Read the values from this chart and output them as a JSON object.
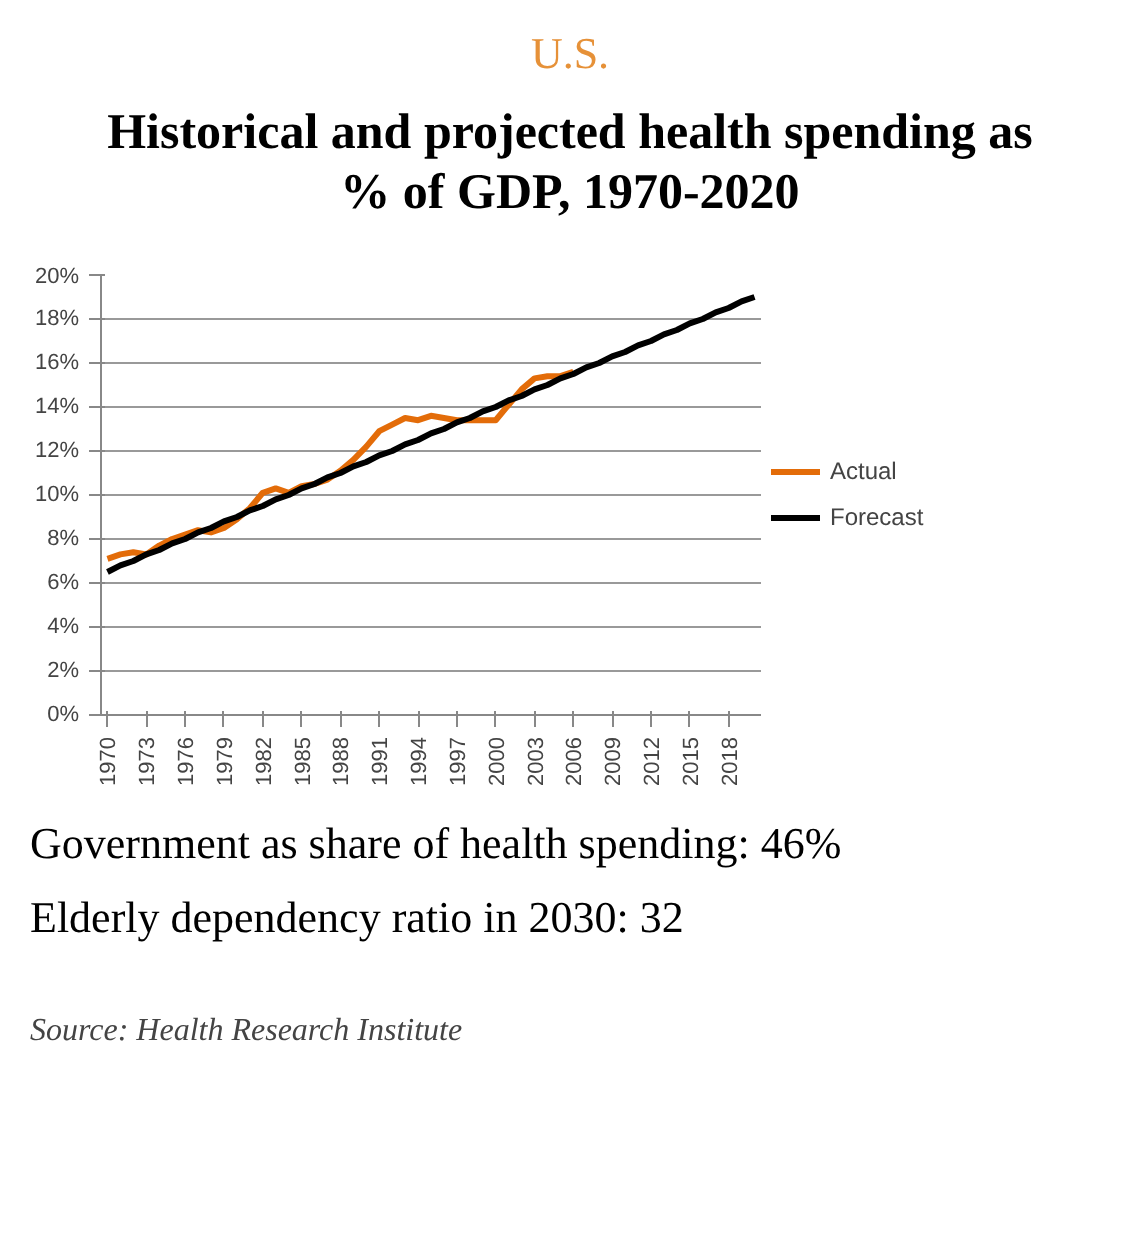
{
  "chart_data": {
    "type": "line",
    "subtitle": "U.S.",
    "title": "Historical and projected health spending as % of GDP, 1970-2020",
    "x": [
      1970,
      1971,
      1972,
      1973,
      1974,
      1975,
      1976,
      1977,
      1978,
      1979,
      1980,
      1981,
      1982,
      1983,
      1984,
      1985,
      1986,
      1987,
      1988,
      1989,
      1990,
      1991,
      1992,
      1993,
      1994,
      1995,
      1996,
      1997,
      1998,
      1999,
      2000,
      2001,
      2002,
      2003,
      2004,
      2005,
      2006,
      2007,
      2008,
      2009,
      2010,
      2011,
      2012,
      2013,
      2014,
      2015,
      2016,
      2017,
      2018,
      2019,
      2020
    ],
    "series": [
      {
        "name": "Actual",
        "color": "#e36c09",
        "values": [
          7.1,
          7.3,
          7.4,
          7.3,
          7.7,
          8.0,
          8.2,
          8.4,
          8.3,
          8.5,
          8.9,
          9.4,
          10.1,
          10.3,
          10.1,
          10.4,
          10.5,
          10.7,
          11.1,
          11.6,
          12.2,
          12.9,
          13.2,
          13.5,
          13.4,
          13.6,
          13.5,
          13.4,
          13.4,
          13.4,
          13.4,
          14.1,
          14.8,
          15.3,
          15.4,
          15.4,
          15.6,
          null,
          null,
          null,
          null,
          null,
          null,
          null,
          null,
          null,
          null,
          null,
          null,
          null,
          null
        ]
      },
      {
        "name": "Forecast",
        "color": "#000000",
        "values": [
          6.5,
          6.8,
          7.0,
          7.3,
          7.5,
          7.8,
          8.0,
          8.3,
          8.5,
          8.8,
          9.0,
          9.3,
          9.5,
          9.8,
          10.0,
          10.3,
          10.5,
          10.8,
          11.0,
          11.3,
          11.5,
          11.8,
          12.0,
          12.3,
          12.5,
          12.8,
          13.0,
          13.3,
          13.5,
          13.8,
          14.0,
          14.3,
          14.5,
          14.8,
          15.0,
          15.3,
          15.5,
          15.8,
          16.0,
          16.3,
          16.5,
          16.8,
          17.0,
          17.3,
          17.5,
          17.8,
          18.0,
          18.3,
          18.5,
          18.8,
          19.0
        ]
      }
    ],
    "xlim": [
      1969.5,
      2020.5
    ],
    "xticks": [
      1970,
      1973,
      1976,
      1979,
      1982,
      1985,
      1988,
      1991,
      1994,
      1997,
      2000,
      2003,
      2006,
      2009,
      2012,
      2015,
      2018
    ],
    "ylim": [
      0,
      20
    ],
    "yticks": [
      {
        "value": 0,
        "label": "0%"
      },
      {
        "value": 2,
        "label": "2%"
      },
      {
        "value": 4,
        "label": "4%"
      },
      {
        "value": 6,
        "label": "6%"
      },
      {
        "value": 8,
        "label": "8%"
      },
      {
        "value": 10,
        "label": "10%"
      },
      {
        "value": 12,
        "label": "12%"
      },
      {
        "value": 14,
        "label": "14%"
      },
      {
        "value": 16,
        "label": "16%"
      },
      {
        "value": 18,
        "label": "18%"
      },
      {
        "value": 20,
        "label": "20%"
      }
    ],
    "grid": "y",
    "legend": "right",
    "marker": "none",
    "line_style": "solid",
    "annotations": [
      "Government as share of health spending: 46%",
      "Elderly dependency ratio in 2030: 32",
      "Source: Health Research Institute"
    ]
  }
}
